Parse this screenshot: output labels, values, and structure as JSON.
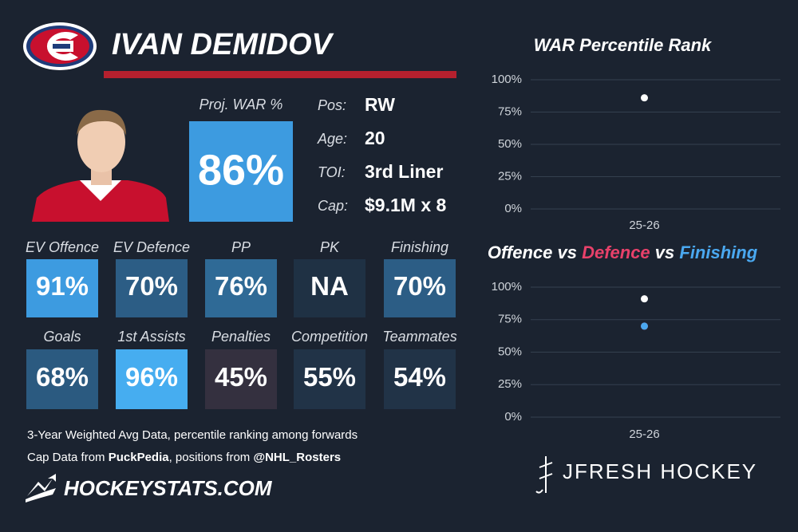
{
  "header": {
    "name": "IVAN DEMIDOV"
  },
  "proj_war": {
    "label": "Proj. WAR %",
    "value": "86%",
    "color": "#3d9be0"
  },
  "info": [
    {
      "label": "Pos:",
      "value": "RW"
    },
    {
      "label": "Age:",
      "value": "20"
    },
    {
      "label": "TOI:",
      "value": "3rd Liner"
    },
    {
      "label": "Cap:",
      "value": "$9.1M x 8"
    }
  ],
  "tiles": [
    {
      "label": "EV Offence",
      "value": "91%",
      "color": "#3d9be0"
    },
    {
      "label": "EV Defence",
      "value": "70%",
      "color": "#2c5d85"
    },
    {
      "label": "PP",
      "value": "76%",
      "color": "#2f6a96"
    },
    {
      "label": "PK",
      "value": "NA",
      "color": "#1f3144"
    },
    {
      "label": "Finishing",
      "value": "70%",
      "color": "#2c5d85"
    },
    {
      "label": "Goals",
      "value": "68%",
      "color": "#2b5a80"
    },
    {
      "label": "1st Assists",
      "value": "96%",
      "color": "#46adf0"
    },
    {
      "label": "Penalties",
      "value": "45%",
      "color": "#34303f"
    },
    {
      "label": "Competition",
      "value": "55%",
      "color": "#213347"
    },
    {
      "label": "Teammates",
      "value": "54%",
      "color": "#213347"
    }
  ],
  "notes": [
    [
      {
        "text": "3-Year Weighted Avg Data, percentile ranking among forwards",
        "bold": false
      }
    ],
    [
      {
        "text": "Cap Data from ",
        "bold": false
      },
      {
        "text": "PuckPedia",
        "bold": true
      },
      {
        "text": ", positions from ",
        "bold": false
      },
      {
        "text": "@NHL_Rosters",
        "bold": true
      }
    ]
  ],
  "footer": {
    "left": "HOCKEYSTATS.COM",
    "right": "JFRESH HOCKEY"
  },
  "chart_data": [
    {
      "type": "scatter",
      "title": "WAR Percentile Rank",
      "categories": [
        "25-26"
      ],
      "series": [
        {
          "color": "#ffffff",
          "values": [
            86
          ]
        }
      ],
      "ylim": [
        0,
        100
      ],
      "yticks": [
        {
          "value": 0,
          "label": "0%"
        },
        {
          "value": 25,
          "label": "25%"
        },
        {
          "value": 50,
          "label": "50%"
        },
        {
          "value": 75,
          "label": "75%"
        },
        {
          "value": 100,
          "label": "100%"
        }
      ],
      "grid": true
    },
    {
      "type": "scatter",
      "title_parts": [
        {
          "text": "Offence",
          "color": "#ffffff"
        },
        {
          "text": " vs ",
          "color": "#ffffff"
        },
        {
          "text": "Defence",
          "color": "#e8416a"
        },
        {
          "text": " vs ",
          "color": "#ffffff"
        },
        {
          "text": "Finishing",
          "color": "#4aa8f0"
        }
      ],
      "categories": [
        "25-26"
      ],
      "series": [
        {
          "name": "Offence",
          "color": "#ffffff",
          "values": [
            91
          ]
        },
        {
          "name": "Defence",
          "color": "#e8416a",
          "values": [
            70
          ]
        },
        {
          "name": "Finishing",
          "color": "#4aa8f0",
          "values": [
            70
          ]
        }
      ],
      "ylim": [
        0,
        100
      ],
      "yticks": [
        {
          "value": 0,
          "label": "0%"
        },
        {
          "value": 25,
          "label": "25%"
        },
        {
          "value": 50,
          "label": "50%"
        },
        {
          "value": 75,
          "label": "75%"
        },
        {
          "value": 100,
          "label": "100%"
        }
      ],
      "grid": true
    }
  ]
}
